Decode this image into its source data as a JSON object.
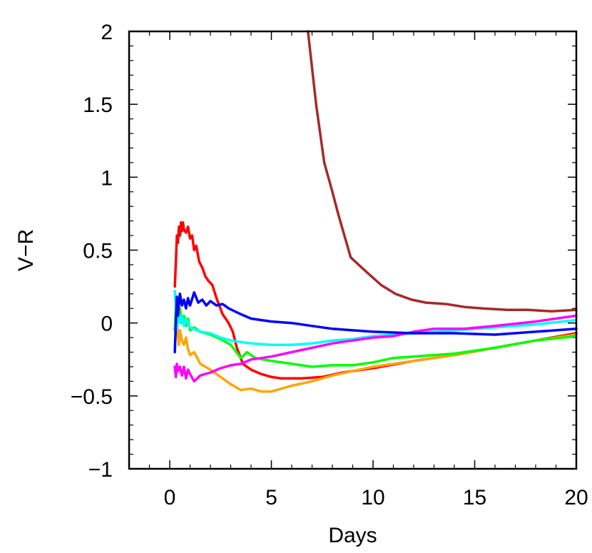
{
  "chart_data": {
    "type": "line",
    "title": "",
    "xlabel": "Days",
    "ylabel": "V−R",
    "xlim": [
      -2,
      20
    ],
    "ylim": [
      -1,
      2
    ],
    "grid": false,
    "legend": "none",
    "x_ticks": [
      {
        "value": 0,
        "label": "0"
      },
      {
        "value": 5,
        "label": "5"
      },
      {
        "value": 10,
        "label": "10"
      },
      {
        "value": 15,
        "label": "15"
      },
      {
        "value": 20,
        "label": "20"
      }
    ],
    "y_ticks": [
      {
        "value": -1,
        "label": "−1"
      },
      {
        "value": -0.5,
        "label": "−0.5"
      },
      {
        "value": 0,
        "label": "0"
      },
      {
        "value": 0.5,
        "label": "0.5"
      },
      {
        "value": 1,
        "label": "1"
      },
      {
        "value": 1.5,
        "label": "1.5"
      },
      {
        "value": 2,
        "label": "2"
      }
    ],
    "series": [
      {
        "color": "#a52a2a",
        "points": [
          [
            6.8,
            2.0
          ],
          [
            7.2,
            1.5
          ],
          [
            7.6,
            1.1
          ],
          [
            8.0,
            0.9
          ],
          [
            8.3,
            0.74
          ],
          [
            8.9,
            0.45
          ],
          [
            9.6,
            0.36
          ],
          [
            10.4,
            0.26
          ],
          [
            11.1,
            0.2
          ],
          [
            11.9,
            0.16
          ],
          [
            12.6,
            0.14
          ],
          [
            13.6,
            0.13
          ],
          [
            14.5,
            0.11
          ],
          [
            15.4,
            0.1
          ],
          [
            16.6,
            0.09
          ],
          [
            17.6,
            0.09
          ],
          [
            18.8,
            0.08
          ],
          [
            20.0,
            0.09
          ]
        ]
      },
      {
        "color": "#ff0000",
        "points": [
          [
            0.25,
            0.25
          ],
          [
            0.3,
            0.42
          ],
          [
            0.35,
            0.6
          ],
          [
            0.4,
            0.55
          ],
          [
            0.45,
            0.66
          ],
          [
            0.5,
            0.6
          ],
          [
            0.55,
            0.69
          ],
          [
            0.6,
            0.63
          ],
          [
            0.65,
            0.69
          ],
          [
            0.7,
            0.64
          ],
          [
            0.8,
            0.62
          ],
          [
            0.9,
            0.66
          ],
          [
            1.0,
            0.58
          ],
          [
            1.1,
            0.6
          ],
          [
            1.2,
            0.5
          ],
          [
            1.3,
            0.53
          ],
          [
            1.45,
            0.42
          ],
          [
            1.6,
            0.38
          ],
          [
            1.75,
            0.32
          ],
          [
            1.9,
            0.29
          ],
          [
            2.1,
            0.26
          ],
          [
            2.3,
            0.17
          ],
          [
            2.6,
            0.06
          ],
          [
            2.9,
            0.0
          ],
          [
            3.1,
            -0.06
          ],
          [
            3.3,
            -0.17
          ],
          [
            3.6,
            -0.28
          ],
          [
            4.0,
            -0.32
          ],
          [
            4.5,
            -0.35
          ],
          [
            5.0,
            -0.37
          ],
          [
            5.5,
            -0.38
          ],
          [
            6.5,
            -0.38
          ],
          [
            7.5,
            -0.37
          ],
          [
            8.5,
            -0.34
          ],
          [
            10.0,
            -0.31
          ],
          [
            12.0,
            -0.26
          ],
          [
            14.0,
            -0.22
          ],
          [
            16.0,
            -0.17
          ],
          [
            18.0,
            -0.12
          ],
          [
            20.0,
            -0.07
          ]
        ]
      },
      {
        "color": "#ffa500",
        "points": [
          [
            0.25,
            -0.16
          ],
          [
            0.3,
            -0.05
          ],
          [
            0.35,
            0.03
          ],
          [
            0.4,
            -0.08
          ],
          [
            0.45,
            -0.15
          ],
          [
            0.5,
            -0.05
          ],
          [
            0.6,
            -0.12
          ],
          [
            0.7,
            -0.15
          ],
          [
            0.8,
            -0.1
          ],
          [
            0.9,
            -0.18
          ],
          [
            1.0,
            -0.22
          ],
          [
            1.2,
            -0.2
          ],
          [
            1.5,
            -0.28
          ],
          [
            2.0,
            -0.32
          ],
          [
            2.5,
            -0.37
          ],
          [
            3.0,
            -0.42
          ],
          [
            3.5,
            -0.46
          ],
          [
            4.0,
            -0.45
          ],
          [
            4.5,
            -0.47
          ],
          [
            5.0,
            -0.47
          ],
          [
            5.5,
            -0.45
          ],
          [
            6.0,
            -0.43
          ],
          [
            7.0,
            -0.4
          ],
          [
            8.0,
            -0.36
          ],
          [
            9.0,
            -0.33
          ],
          [
            10.0,
            -0.3
          ],
          [
            12.0,
            -0.26
          ],
          [
            14.0,
            -0.22
          ],
          [
            16.0,
            -0.17
          ],
          [
            18.0,
            -0.12
          ],
          [
            20.0,
            -0.08
          ]
        ]
      },
      {
        "color": "#00ff00",
        "points": [
          [
            0.25,
            -0.05
          ],
          [
            0.3,
            0.12
          ],
          [
            0.35,
            0.03
          ],
          [
            0.4,
            0.16
          ],
          [
            0.45,
            0.05
          ],
          [
            0.5,
            0.1
          ],
          [
            0.6,
            0.0
          ],
          [
            0.7,
            0.05
          ],
          [
            0.8,
            -0.02
          ],
          [
            0.9,
            0.03
          ],
          [
            1.0,
            -0.05
          ],
          [
            1.2,
            -0.03
          ],
          [
            1.5,
            -0.06
          ],
          [
            2.0,
            -0.08
          ],
          [
            2.5,
            -0.11
          ],
          [
            3.0,
            -0.15
          ],
          [
            3.5,
            -0.24
          ],
          [
            3.8,
            -0.2
          ],
          [
            4.2,
            -0.24
          ],
          [
            5.0,
            -0.26
          ],
          [
            6.0,
            -0.28
          ],
          [
            7.0,
            -0.3
          ],
          [
            8.0,
            -0.29
          ],
          [
            9.0,
            -0.29
          ],
          [
            10.0,
            -0.27
          ],
          [
            11.0,
            -0.24
          ],
          [
            12.0,
            -0.23
          ],
          [
            14.0,
            -0.21
          ],
          [
            16.0,
            -0.17
          ],
          [
            18.0,
            -0.12
          ],
          [
            20.0,
            -0.09
          ]
        ]
      },
      {
        "color": "#00ffff",
        "points": [
          [
            0.25,
            0.22
          ],
          [
            0.3,
            0.1
          ],
          [
            0.35,
            -0.05
          ],
          [
            0.4,
            0.08
          ],
          [
            0.5,
            0.0
          ],
          [
            0.6,
            0.05
          ],
          [
            0.7,
            -0.02
          ],
          [
            0.8,
            0.03
          ],
          [
            1.0,
            -0.03
          ],
          [
            1.5,
            -0.06
          ],
          [
            2.0,
            -0.07
          ],
          [
            2.5,
            -0.1
          ],
          [
            3.0,
            -0.12
          ],
          [
            4.0,
            -0.14
          ],
          [
            5.0,
            -0.15
          ],
          [
            6.0,
            -0.15
          ],
          [
            7.0,
            -0.14
          ],
          [
            8.0,
            -0.12
          ],
          [
            9.0,
            -0.11
          ],
          [
            10.0,
            -0.09
          ],
          [
            12.0,
            -0.07
          ],
          [
            14.0,
            -0.05
          ],
          [
            16.0,
            -0.03
          ],
          [
            18.0,
            -0.01
          ],
          [
            20.0,
            0.02
          ]
        ]
      },
      {
        "color": "#ff00ff",
        "points": [
          [
            0.25,
            -0.3
          ],
          [
            0.3,
            -0.37
          ],
          [
            0.35,
            -0.28
          ],
          [
            0.4,
            -0.33
          ],
          [
            0.5,
            -0.3
          ],
          [
            0.6,
            -0.36
          ],
          [
            0.7,
            -0.3
          ],
          [
            0.8,
            -0.38
          ],
          [
            0.9,
            -0.32
          ],
          [
            1.0,
            -0.35
          ],
          [
            1.2,
            -0.4
          ],
          [
            1.5,
            -0.36
          ],
          [
            2.0,
            -0.34
          ],
          [
            2.5,
            -0.31
          ],
          [
            3.0,
            -0.29
          ],
          [
            3.5,
            -0.28
          ],
          [
            4.0,
            -0.25
          ],
          [
            5.0,
            -0.23
          ],
          [
            6.0,
            -0.2
          ],
          [
            7.0,
            -0.17
          ],
          [
            8.0,
            -0.14
          ],
          [
            9.0,
            -0.12
          ],
          [
            10.0,
            -0.1
          ],
          [
            11.0,
            -0.09
          ],
          [
            12.0,
            -0.06
          ],
          [
            13.0,
            -0.04
          ],
          [
            14.5,
            -0.04
          ],
          [
            16.0,
            -0.02
          ],
          [
            18.0,
            0.01
          ],
          [
            20.0,
            0.05
          ]
        ]
      },
      {
        "color": "#0000ff",
        "points": [
          [
            0.25,
            -0.2
          ],
          [
            0.3,
            0.0
          ],
          [
            0.35,
            0.18
          ],
          [
            0.4,
            0.05
          ],
          [
            0.5,
            0.2
          ],
          [
            0.6,
            0.12
          ],
          [
            0.7,
            0.16
          ],
          [
            0.8,
            0.1
          ],
          [
            0.9,
            0.17
          ],
          [
            1.0,
            0.12
          ],
          [
            1.2,
            0.21
          ],
          [
            1.4,
            0.14
          ],
          [
            1.6,
            0.16
          ],
          [
            1.8,
            0.12
          ],
          [
            2.0,
            0.15
          ],
          [
            2.3,
            0.12
          ],
          [
            2.6,
            0.13
          ],
          [
            2.9,
            0.1
          ],
          [
            3.2,
            0.08
          ],
          [
            3.5,
            0.06
          ],
          [
            4.0,
            0.03
          ],
          [
            5.0,
            0.01
          ],
          [
            6.0,
            0.0
          ],
          [
            7.0,
            -0.02
          ],
          [
            8.0,
            -0.04
          ],
          [
            9.0,
            -0.05
          ],
          [
            10.0,
            -0.06
          ],
          [
            12.0,
            -0.07
          ],
          [
            14.0,
            -0.07
          ],
          [
            16.0,
            -0.08
          ],
          [
            18.0,
            -0.06
          ],
          [
            20.0,
            -0.04
          ]
        ]
      }
    ]
  }
}
